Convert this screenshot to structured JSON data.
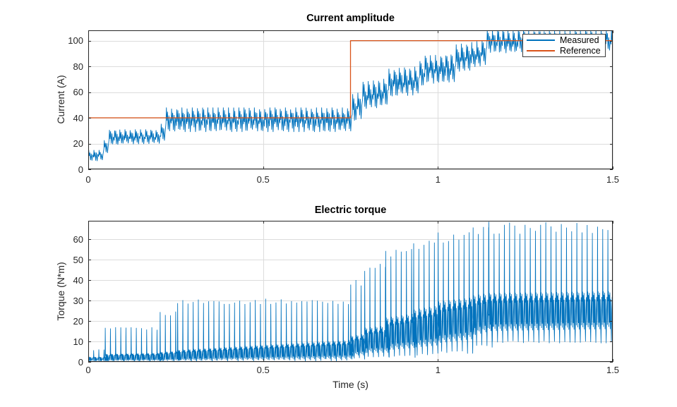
{
  "figure": {
    "background": "#ffffff",
    "kind": "matlab-figure"
  },
  "colors": {
    "measured": "#0072BD",
    "reference": "#D95319",
    "grid": "#dcdcdc",
    "axis": "#262626",
    "tick_text": "#262626",
    "title_text": "#000000"
  },
  "legend": {
    "items": [
      {
        "label": "Measured",
        "color": "#0072BD"
      },
      {
        "label": "Reference",
        "color": "#D95319"
      }
    ],
    "position": "northeast"
  },
  "chart_data": [
    {
      "type": "line",
      "title": "Current amplitude",
      "xlabel": "",
      "ylabel": "Current (A)",
      "xlim": [
        0,
        1.5
      ],
      "ylim": [
        0,
        108
      ],
      "xticks": [
        0,
        0.5,
        1,
        1.5
      ],
      "xtick_labels": [
        "0",
        "0.5",
        "1",
        "1.5"
      ],
      "yticks": [
        0,
        20,
        40,
        60,
        80,
        100
      ],
      "ytick_labels": [
        "0",
        "20",
        "40",
        "60",
        "80",
        "100"
      ],
      "grid": true,
      "series": [
        {
          "name": "Measured",
          "color": "#0072BD",
          "kind": "oscillation",
          "period_s": 0.0148,
          "envelope_note": "points are [time_s, min_A, max_A] of the oscillation band",
          "envelope": [
            [
              0.0,
              0,
              3
            ],
            [
              0.006,
              6,
              15
            ],
            [
              0.048,
              7,
              15
            ],
            [
              0.056,
              19,
              31
            ],
            [
              0.21,
              20,
              31
            ],
            [
              0.228,
              29,
              48
            ],
            [
              0.75,
              29,
              48
            ],
            [
              0.756,
              36,
              58
            ],
            [
              0.783,
              40,
              60
            ],
            [
              0.79,
              47,
              68
            ],
            [
              0.85,
              48,
              70
            ],
            [
              0.857,
              56,
              78
            ],
            [
              0.95,
              58,
              80
            ],
            [
              0.957,
              66,
              88
            ],
            [
              1.05,
              68,
              90
            ],
            [
              1.057,
              75,
              97
            ],
            [
              1.13,
              79,
              100
            ],
            [
              1.145,
              90,
              108.5
            ],
            [
              1.5,
              92,
              108.5
            ]
          ]
        },
        {
          "name": "Reference",
          "color": "#D95319",
          "kind": "step",
          "points": [
            [
              0,
              40
            ],
            [
              0.75,
              40
            ],
            [
              0.75,
              100
            ],
            [
              1.5,
              100
            ]
          ]
        }
      ]
    },
    {
      "type": "line",
      "title": "Electric torque",
      "xlabel": "Time (s)",
      "ylabel": "Torque (N*m)",
      "xlim": [
        0,
        1.5
      ],
      "ylim": [
        0,
        69
      ],
      "xticks": [
        0,
        0.5,
        1,
        1.5
      ],
      "xtick_labels": [
        "0",
        "0.5",
        "1",
        "1.5"
      ],
      "yticks": [
        0,
        10,
        20,
        30,
        40,
        50,
        60
      ],
      "ytick_labels": [
        "0",
        "10",
        "20",
        "30",
        "40",
        "50",
        "60"
      ],
      "grid": true,
      "series": [
        {
          "name": "Torque",
          "color": "#0072BD",
          "kind": "spiky",
          "period_s": 0.0148,
          "segments_note": "each segment: [t0, t1, baseMin0, baseMax0, baseMin1, baseMax1, spikePeak_Nm, downTail_Nm]",
          "segments": [
            [
              0.0,
              0.048,
              0.0,
              2.5,
              0.0,
              2.5,
              6.0,
              0.0
            ],
            [
              0.048,
              0.205,
              0.0,
              4.0,
              0.0,
              4.5,
              16.5,
              0.0
            ],
            [
              0.205,
              0.255,
              0.0,
              5.0,
              0.0,
              5.5,
              24.0,
              0.0
            ],
            [
              0.255,
              0.75,
              0.0,
              6.0,
              0.5,
              11.0,
              30.0,
              0.2
            ],
            [
              0.75,
              0.79,
              2.0,
              13.0,
              2.0,
              14.0,
              39.0,
              1.0
            ],
            [
              0.79,
              0.85,
              3.0,
              17.0,
              3.0,
              18.0,
              47.0,
              1.5
            ],
            [
              0.85,
              0.93,
              4.0,
              22.0,
              5.0,
              24.0,
              54.0,
              2.0
            ],
            [
              0.93,
              1.0,
              5.0,
              26.0,
              6.0,
              28.0,
              58.0,
              3.0
            ],
            [
              1.0,
              1.1,
              7.0,
              30.0,
              9.0,
              32.0,
              62.0,
              4.0
            ],
            [
              1.1,
              1.145,
              11.0,
              33.0,
              13.0,
              34.0,
              64.5,
              7.0
            ],
            [
              1.145,
              1.5,
              13.0,
              34.0,
              14.0,
              35.0,
              66.5,
              9.0
            ]
          ]
        }
      ]
    }
  ]
}
